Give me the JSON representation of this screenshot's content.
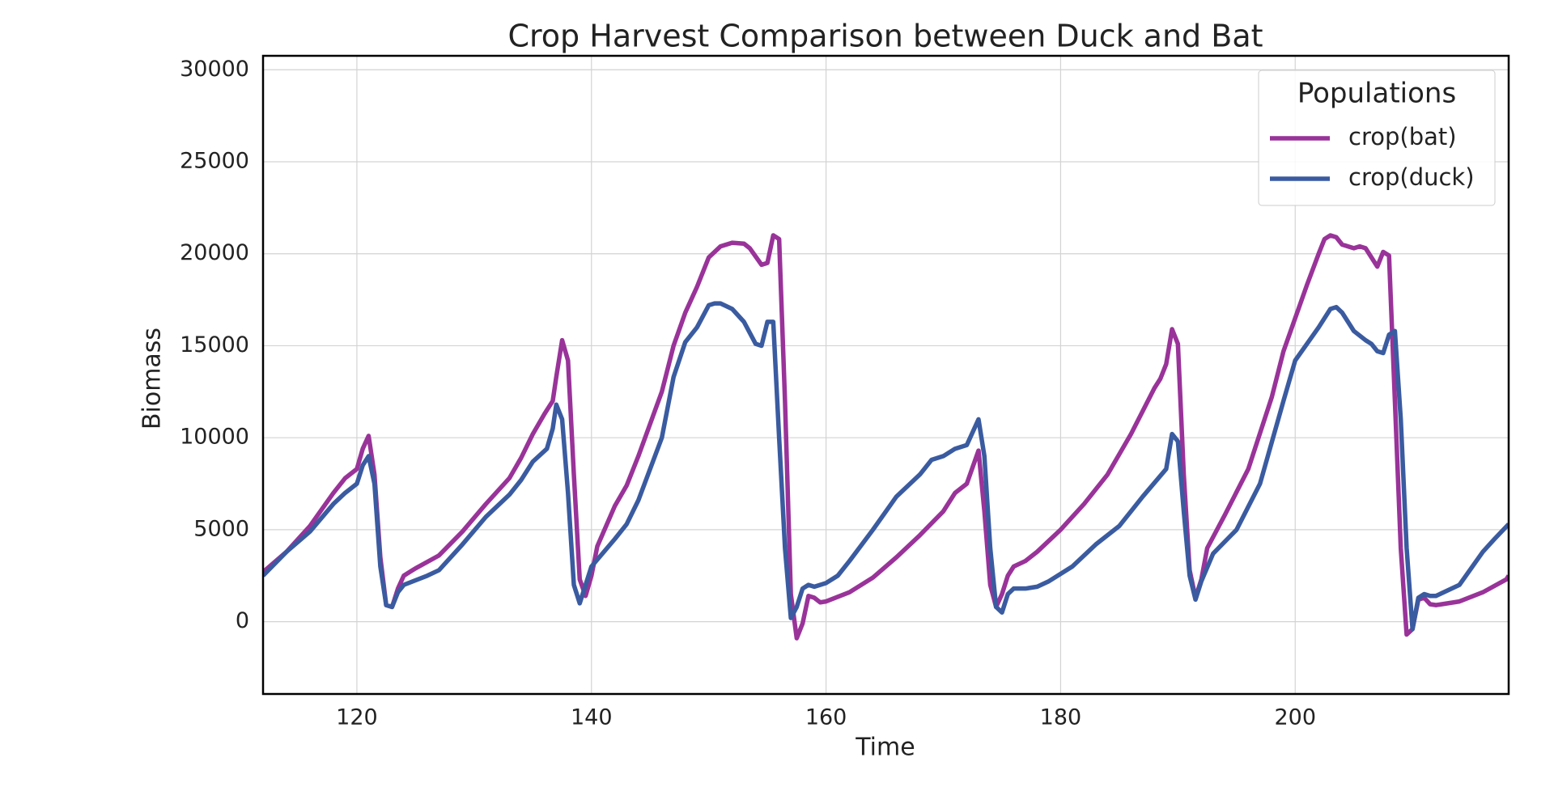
{
  "chart_data": {
    "type": "line",
    "title": "Crop Harvest Comparison between Duck and Bat",
    "x_label": "Time",
    "y_label": "Biomass",
    "legend_title": "Populations",
    "legend_position": "upper right",
    "grid": true,
    "xlim": [
      112,
      218.2
    ],
    "ylim": [
      -3930,
      30760
    ],
    "xticks": [
      120,
      140,
      160,
      180,
      200
    ],
    "yticks": [
      0,
      5000,
      10000,
      15000,
      20000,
      25000,
      30000
    ],
    "series": [
      {
        "name": "crop(bat)",
        "color": "#993399",
        "x": [
          112,
          114,
          116,
          118,
          119,
          120,
          120.5,
          121,
          121.5,
          122,
          122.5,
          123,
          123.5,
          124,
          125,
          127,
          129,
          131,
          133,
          134,
          135,
          136,
          136.7,
          137,
          137.5,
          138,
          138.5,
          139,
          139.5,
          140,
          140.5,
          142,
          143,
          144,
          146,
          147,
          148,
          149,
          150,
          151,
          152,
          153,
          153.5,
          154.5,
          155,
          155.5,
          156,
          156.5,
          157,
          157.5,
          158,
          158.5,
          159,
          159.5,
          160,
          162,
          164,
          166,
          168,
          170,
          171,
          172,
          173,
          173.5,
          174,
          174.5,
          175,
          175.5,
          176,
          177,
          178,
          180,
          182,
          184,
          186,
          188,
          188.5,
          189,
          189.5,
          190,
          190.5,
          191,
          191.5,
          192,
          192.5,
          194,
          196,
          198,
          199,
          200,
          201,
          202,
          202.5,
          203,
          203.5,
          204,
          205,
          205.5,
          206,
          206.5,
          207,
          207.5,
          208,
          208.5,
          209,
          209.5,
          210,
          210.5,
          211,
          211.5,
          212,
          214,
          216,
          218,
          218.2
        ],
        "values": [
          2700,
          3800,
          5200,
          7000,
          7800,
          8300,
          9400,
          10100,
          8000,
          3500,
          900,
          800,
          1800,
          2500,
          2900,
          3600,
          4900,
          6400,
          7800,
          8900,
          10200,
          11300,
          12000,
          13300,
          15300,
          14200,
          8000,
          2300,
          1400,
          2500,
          4100,
          6300,
          7400,
          9000,
          12500,
          15000,
          16800,
          18200,
          19800,
          20400,
          20600,
          20550,
          20300,
          19400,
          19500,
          21000,
          20800,
          12000,
          1500,
          -900,
          -100,
          1400,
          1300,
          1050,
          1100,
          1600,
          2400,
          3500,
          4700,
          6000,
          7000,
          7500,
          9300,
          6000,
          2000,
          800,
          1500,
          2500,
          3000,
          3300,
          3800,
          5000,
          6400,
          8000,
          10200,
          12700,
          13200,
          14000,
          15900,
          15100,
          8000,
          2800,
          1300,
          2300,
          4000,
          5800,
          8300,
          12200,
          14700,
          16500,
          18300,
          20000,
          20800,
          21000,
          20900,
          20500,
          20300,
          20400,
          20300,
          19800,
          19300,
          20100,
          19900,
          12000,
          4000,
          -700,
          -400,
          1200,
          1300,
          950,
          900,
          1100,
          1600,
          2300,
          2500
        ]
      },
      {
        "name": "crop(duck)",
        "color": "#3a5ba0",
        "x": [
          112,
          114,
          116,
          118,
          119,
          120,
          120.5,
          121,
          121.5,
          122,
          122.5,
          123,
          123.5,
          124,
          126,
          127,
          129,
          131,
          133,
          134,
          135,
          136.2,
          136.7,
          137,
          137.5,
          138,
          138.5,
          139,
          139.5,
          140,
          142,
          143,
          144,
          146,
          147,
          148,
          149,
          150,
          150.5,
          151,
          152,
          153,
          154,
          154.5,
          155,
          155.5,
          156,
          156.5,
          157,
          157.5,
          158,
          158.5,
          159,
          160,
          161,
          162,
          164,
          166,
          168,
          169,
          170,
          171,
          172,
          173,
          173.5,
          174,
          174.5,
          175,
          175.5,
          176,
          177,
          178,
          179,
          181,
          183,
          185,
          187,
          189,
          189.5,
          190,
          190.5,
          191,
          191.5,
          192,
          193,
          195,
          197,
          199,
          200,
          201,
          202,
          203,
          203.5,
          204,
          205,
          206,
          206.5,
          207,
          207.5,
          208,
          208.5,
          209,
          209.5,
          210,
          210.5,
          211,
          211.5,
          212,
          214,
          216,
          217,
          218.2
        ],
        "values": [
          2500,
          3800,
          4900,
          6400,
          7000,
          7500,
          8500,
          9000,
          7500,
          3000,
          900,
          800,
          1600,
          2000,
          2500,
          2800,
          4200,
          5700,
          6900,
          7700,
          8700,
          9400,
          10500,
          11800,
          11000,
          7000,
          2000,
          1000,
          2000,
          3000,
          4500,
          5300,
          6600,
          10000,
          13300,
          15200,
          16000,
          17200,
          17300,
          17300,
          17000,
          16300,
          15100,
          15000,
          16300,
          16300,
          10000,
          4000,
          200,
          800,
          1800,
          2000,
          1900,
          2100,
          2500,
          3300,
          5000,
          6800,
          8000,
          8800,
          9000,
          9400,
          9600,
          11000,
          9000,
          4000,
          800,
          500,
          1500,
          1800,
          1800,
          1900,
          2200,
          3000,
          4200,
          5200,
          6800,
          8300,
          10200,
          9800,
          6000,
          2500,
          1200,
          2200,
          3700,
          5000,
          7500,
          12000,
          14200,
          15100,
          16000,
          17000,
          17100,
          16800,
          15800,
          15300,
          15100,
          14700,
          14600,
          15600,
          15800,
          11000,
          4000,
          -400,
          1300,
          1500,
          1400,
          1400,
          2000,
          3800,
          4500,
          5300
        ]
      }
    ]
  }
}
